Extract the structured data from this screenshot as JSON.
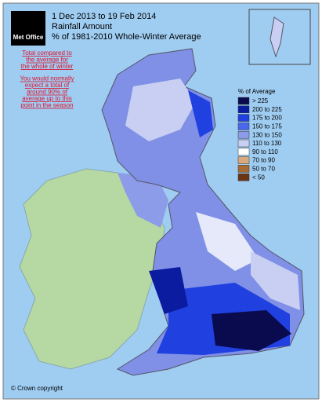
{
  "logo": "Met Office",
  "header": {
    "lines": [
      "1 Dec 2013 to 19 Feb 2014",
      "Rainfall Amount",
      "% of 1981-2010 Whole-Winter Average"
    ]
  },
  "notes": {
    "color": "#e0102a",
    "groups": [
      [
        "Total compared to",
        "the average for",
        "the whole of winter"
      ],
      [
        "You would normally",
        "expect a total of",
        "around 90% of",
        "average up to this",
        "point in the season"
      ]
    ]
  },
  "legend": {
    "title": "% of Average",
    "items": [
      {
        "label": "> 225",
        "color": "#0a0a4e"
      },
      {
        "label": "200 to 225",
        "color": "#0c1ca0"
      },
      {
        "label": "175 to 200",
        "color": "#2040e0"
      },
      {
        "label": "150 to 175",
        "color": "#4a66ea"
      },
      {
        "label": "130 to 150",
        "color": "#8c9ce8"
      },
      {
        "label": "110 to 130",
        "color": "#c8cff3"
      },
      {
        "label": "90 to 110",
        "color": "#ffffff"
      },
      {
        "label": "70 to 90",
        "color": "#d9a97c"
      },
      {
        "label": "50 to 70",
        "color": "#a96b30"
      },
      {
        "label": "< 50",
        "color": "#6b3412"
      }
    ]
  },
  "copyright": "© Crown copyright"
}
